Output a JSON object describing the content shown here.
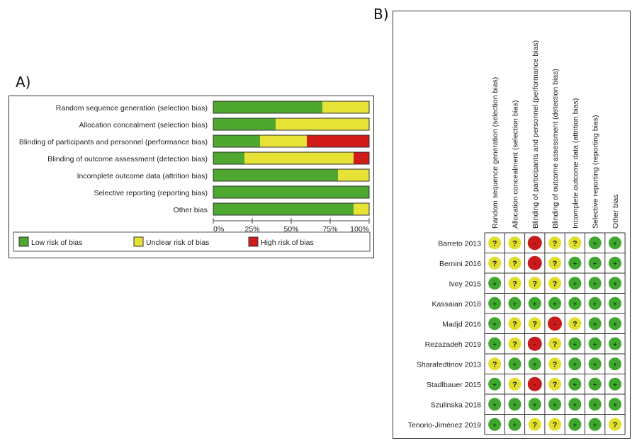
{
  "labels": {
    "panel_a": "A)",
    "panel_b": "B)"
  },
  "chart_data": [
    {
      "type": "bar",
      "subtype": "stacked-horizontal-percent",
      "title": "",
      "categories": [
        "Random sequence generation (selection bias)",
        "Allocation concealment (selection bias)",
        "Blinding of participants and personnel (performance bias)",
        "Blinding of outcome assessment (detection bias)",
        "Incomplete outcome data (attrition bias)",
        "Selective reporting (reporting bias)",
        "Other bias"
      ],
      "series": [
        {
          "name": "Low risk of bias",
          "color": "#4ea72e",
          "values": [
            70,
            40,
            30,
            20,
            80,
            100,
            90
          ]
        },
        {
          "name": "Unclear risk of bias",
          "color": "#e6e236",
          "values": [
            30,
            60,
            30,
            70,
            20,
            0,
            10
          ]
        },
        {
          "name": "High risk of bias",
          "color": "#d11b1b",
          "values": [
            0,
            0,
            40,
            10,
            0,
            0,
            0
          ]
        }
      ],
      "xlim": [
        0,
        100
      ],
      "xticks": [
        "0%",
        "25%",
        "50%",
        "75%",
        "100%"
      ],
      "xlabel": "",
      "ylabel": "",
      "legend_position": "bottom"
    },
    {
      "type": "table",
      "subtype": "risk-of-bias-summary",
      "columns": [
        "Random sequence generation (selection bias)",
        "Allocation concealment (selection bias)",
        "Blinding of participants and personnel (performance bias)",
        "Blinding of outcome assessment (detection bias)",
        "Incomplete outcome data (attrition bias)",
        "Selective reporting (reporting bias)",
        "Other bias"
      ],
      "rows": [
        {
          "study": "Barreto 2013",
          "ratings": [
            "?",
            "?",
            "-",
            "?",
            "?",
            "+",
            "+"
          ]
        },
        {
          "study": "Bernini 2016",
          "ratings": [
            "?",
            "?",
            "-",
            "?",
            "+",
            "+",
            "+"
          ]
        },
        {
          "study": "Ivey 2015",
          "ratings": [
            "+",
            "?",
            "?",
            "?",
            "+",
            "+",
            "+"
          ]
        },
        {
          "study": "Kassaian 2018",
          "ratings": [
            "+",
            "+",
            "+",
            "+",
            "+",
            "+",
            "+"
          ]
        },
        {
          "study": "Madjd 2016",
          "ratings": [
            "+",
            "?",
            "?",
            "-",
            "?",
            "+",
            "+"
          ]
        },
        {
          "study": "Rezazadeh 2019",
          "ratings": [
            "+",
            "?",
            "-",
            "?",
            "+",
            "+",
            "+"
          ]
        },
        {
          "study": "Sharafedtinov 2013",
          "ratings": [
            "?",
            "+",
            "+",
            "?",
            "+",
            "+",
            "+"
          ]
        },
        {
          "study": "Stadlbauer 2015",
          "ratings": [
            "+",
            "?",
            "-",
            "?",
            "+",
            "+",
            "+"
          ]
        },
        {
          "study": "Szulinska 2018",
          "ratings": [
            "+",
            "+",
            "+",
            "+",
            "+",
            "+",
            "+"
          ]
        },
        {
          "study": "Tenorio-Jiménez 2019",
          "ratings": [
            "+",
            "+",
            "?",
            "?",
            "+",
            "+",
            "?"
          ]
        }
      ],
      "rating_colors": {
        "+": "#3fa62e",
        "?": "#e2df2a",
        "-": "#c81a1a"
      }
    }
  ]
}
